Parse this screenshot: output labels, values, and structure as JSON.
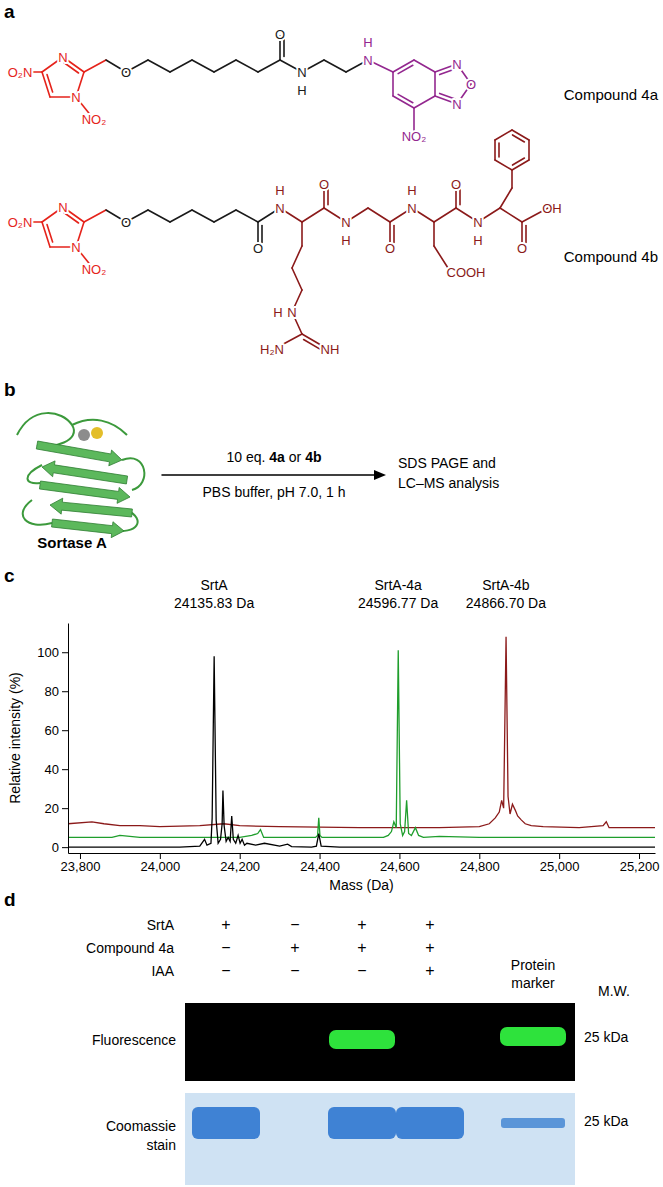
{
  "panel_labels": [
    "a",
    "b",
    "c",
    "d"
  ],
  "panel_a": {
    "compounds": [
      {
        "name": "Compound 4a",
        "atoms": [
          "O₂N",
          "N",
          "N",
          "NO₂",
          "O",
          "O",
          "N",
          "H",
          "N",
          "H",
          "N",
          "O",
          "N",
          "NO₂"
        ]
      },
      {
        "name": "Compound 4b",
        "atoms": [
          "O₂N",
          "N",
          "N",
          "NO₂",
          "O",
          "O",
          "N",
          "H",
          "O",
          "N",
          "H",
          "O",
          "N",
          "H",
          "O",
          "N",
          "H",
          "O",
          "OH",
          "COOH",
          "N",
          "H",
          "NH",
          "H₂N"
        ]
      }
    ]
  },
  "panel_b": {
    "protein": "Sortase A",
    "reagent": [
      "10 eq. ",
      "4a",
      " or ",
      "4b"
    ],
    "conditions": "PBS buffer, pH 7.0, 1 h",
    "analysis": [
      "SDS PAGE and",
      "LC–MS analysis"
    ]
  },
  "chart_data": {
    "type": "line",
    "xlabel": "Mass (Da)",
    "ylabel": "Relative intensity (%)",
    "xlim": [
      23770,
      25240
    ],
    "xticks": [
      {
        "value": 23800,
        "label": "23,800"
      },
      {
        "value": 24000,
        "label": "24,000"
      },
      {
        "value": 24200,
        "label": "24,200"
      },
      {
        "value": 24400,
        "label": "24,400"
      },
      {
        "value": 24600,
        "label": "24,600"
      },
      {
        "value": 24800,
        "label": "24,800"
      },
      {
        "value": 25000,
        "label": "25,000"
      },
      {
        "value": 25200,
        "label": "25,200"
      }
    ],
    "ylim": [
      -3,
      115
    ],
    "yticks": [
      0,
      20,
      40,
      60,
      80,
      100
    ],
    "series": [
      {
        "name": "SrtA",
        "color": "#000000",
        "peak": 24135.83,
        "peak_label": "24135.83 Da",
        "x": [
          23770,
          23900,
          24050,
          24100,
          24112,
          24118,
          24128,
          24131,
          24136,
          24141,
          24146,
          24152,
          24156,
          24158,
          24161,
          24166,
          24171,
          24176,
          24180,
          24184,
          24190,
          24196,
          24201,
          24206,
          24212,
          24218,
          24240,
          24262,
          24300,
          24320,
          24330,
          24380,
          24392,
          24398,
          24404,
          24450,
          24700,
          25000,
          25240
        ],
        "values": [
          0,
          0,
          0,
          0.5,
          4,
          1,
          2,
          15,
          98,
          14,
          2,
          4,
          12,
          29,
          11,
          3,
          5,
          3,
          16,
          4,
          2,
          6,
          2,
          4,
          1,
          2,
          1,
          2,
          0.5,
          1.5,
          0.3,
          0,
          0.5,
          7,
          0.5,
          0,
          0,
          0,
          0
        ]
      },
      {
        "name": "SrtA-4a",
        "color": "#1f9e2c",
        "peak": 24596.77,
        "peak_label": "24596.77 Da",
        "x": [
          23770,
          23880,
          23900,
          23950,
          24100,
          24200,
          24230,
          24245,
          24252,
          24260,
          24300,
          24390,
          24395,
          24398,
          24401,
          24406,
          24500,
          24560,
          24572,
          24580,
          24586,
          24592,
          24597,
          24602,
          24608,
          24613,
          24618,
          24623,
          24630,
          24640,
          24648,
          24660,
          24700,
          24800,
          25000,
          25240
        ],
        "values": [
          5,
          5,
          6,
          5,
          5,
          5,
          6,
          7,
          9,
          5,
          5,
          5,
          6,
          15,
          6,
          5,
          5,
          5,
          6,
          8,
          13,
          10,
          101,
          12,
          6,
          8,
          24,
          7,
          6,
          10,
          6,
          5,
          5.5,
          5,
          5,
          5
        ]
      },
      {
        "name": "SrtA-4b",
        "color": "#8b1a1a",
        "peak": 24866.7,
        "peak_label": "24866.70 Da",
        "x": [
          23770,
          23830,
          23860,
          23900,
          23950,
          24000,
          24100,
          24160,
          24200,
          24300,
          24500,
          24700,
          24800,
          24825,
          24840,
          24850,
          24856,
          24861,
          24867,
          24872,
          24877,
          24883,
          24890,
          24896,
          24905,
          24915,
          24930,
          24960,
          25050,
          25110,
          25118,
          25125,
          25140,
          25240
        ],
        "values": [
          12,
          13,
          12,
          11,
          11,
          10.5,
          11,
          12,
          11,
          10.5,
          10,
          10,
          10.5,
          12,
          15,
          18,
          24,
          20,
          108,
          26,
          17,
          22,
          19,
          16,
          14,
          12,
          11,
          10.5,
          10,
          11,
          13,
          10,
          10,
          10
        ]
      }
    ]
  },
  "panel_d": {
    "rows": [
      {
        "label": "SrtA",
        "lanes": [
          "+",
          "−",
          "+",
          "+"
        ]
      },
      {
        "label": "Compound 4a",
        "lanes": [
          "−",
          "+",
          "+",
          "+"
        ]
      },
      {
        "label": "IAA",
        "lanes": [
          "−",
          "−",
          "−",
          "+"
        ]
      }
    ],
    "marker_label": [
      "Protein",
      "marker"
    ],
    "mw_label": "M.W.",
    "gels": [
      {
        "label": [
          "Fluorescence"
        ],
        "mw": "25 kDa"
      },
      {
        "label": [
          "Coomassie",
          "stain"
        ],
        "mw": "25 kDa"
      }
    ]
  }
}
